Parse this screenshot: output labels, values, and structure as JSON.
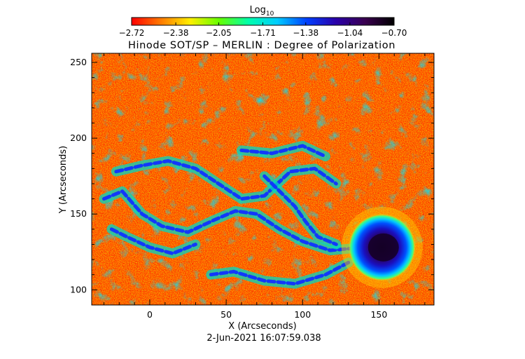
{
  "chart_data": {
    "type": "heatmap",
    "title": "Hinode SOT/SP – MERLIN : Degree of Polarization",
    "xlabel": "X (Arcseconds)",
    "ylabel": "Y (Arcseconds)",
    "timestamp": "2-Jun-2021 16:07:59.038",
    "xlim": [
      -38,
      186
    ],
    "ylim": [
      90,
      256
    ],
    "x_ticks": [
      0,
      50,
      100,
      150
    ],
    "y_ticks": [
      100,
      150,
      200,
      250
    ],
    "colorbar": {
      "label_base": "Log",
      "label_sub": "10",
      "min": -2.72,
      "max": -0.7,
      "tick_values": [
        -2.72,
        -2.38,
        -2.05,
        -1.71,
        -1.38,
        -1.04,
        -0.7
      ],
      "tick_labels": [
        "−2.72",
        "−2.38",
        "−2.05",
        "−1.71",
        "−1.38",
        "−1.04",
        "−0.70"
      ],
      "colormap": [
        "#ff0000",
        "#ff7a00",
        "#ffee00",
        "#66ff00",
        "#00ffaa",
        "#00ccff",
        "#0040ff",
        "#2a00aa",
        "#3a0050",
        "#000000"
      ]
    },
    "features": [
      {
        "name": "sunspot umbra",
        "x": 152,
        "y": 128,
        "value": -0.75
      },
      {
        "name": "sunspot penumbra",
        "x": 152,
        "y": 128,
        "value": -1.15
      }
    ],
    "background_value": -2.65
  }
}
